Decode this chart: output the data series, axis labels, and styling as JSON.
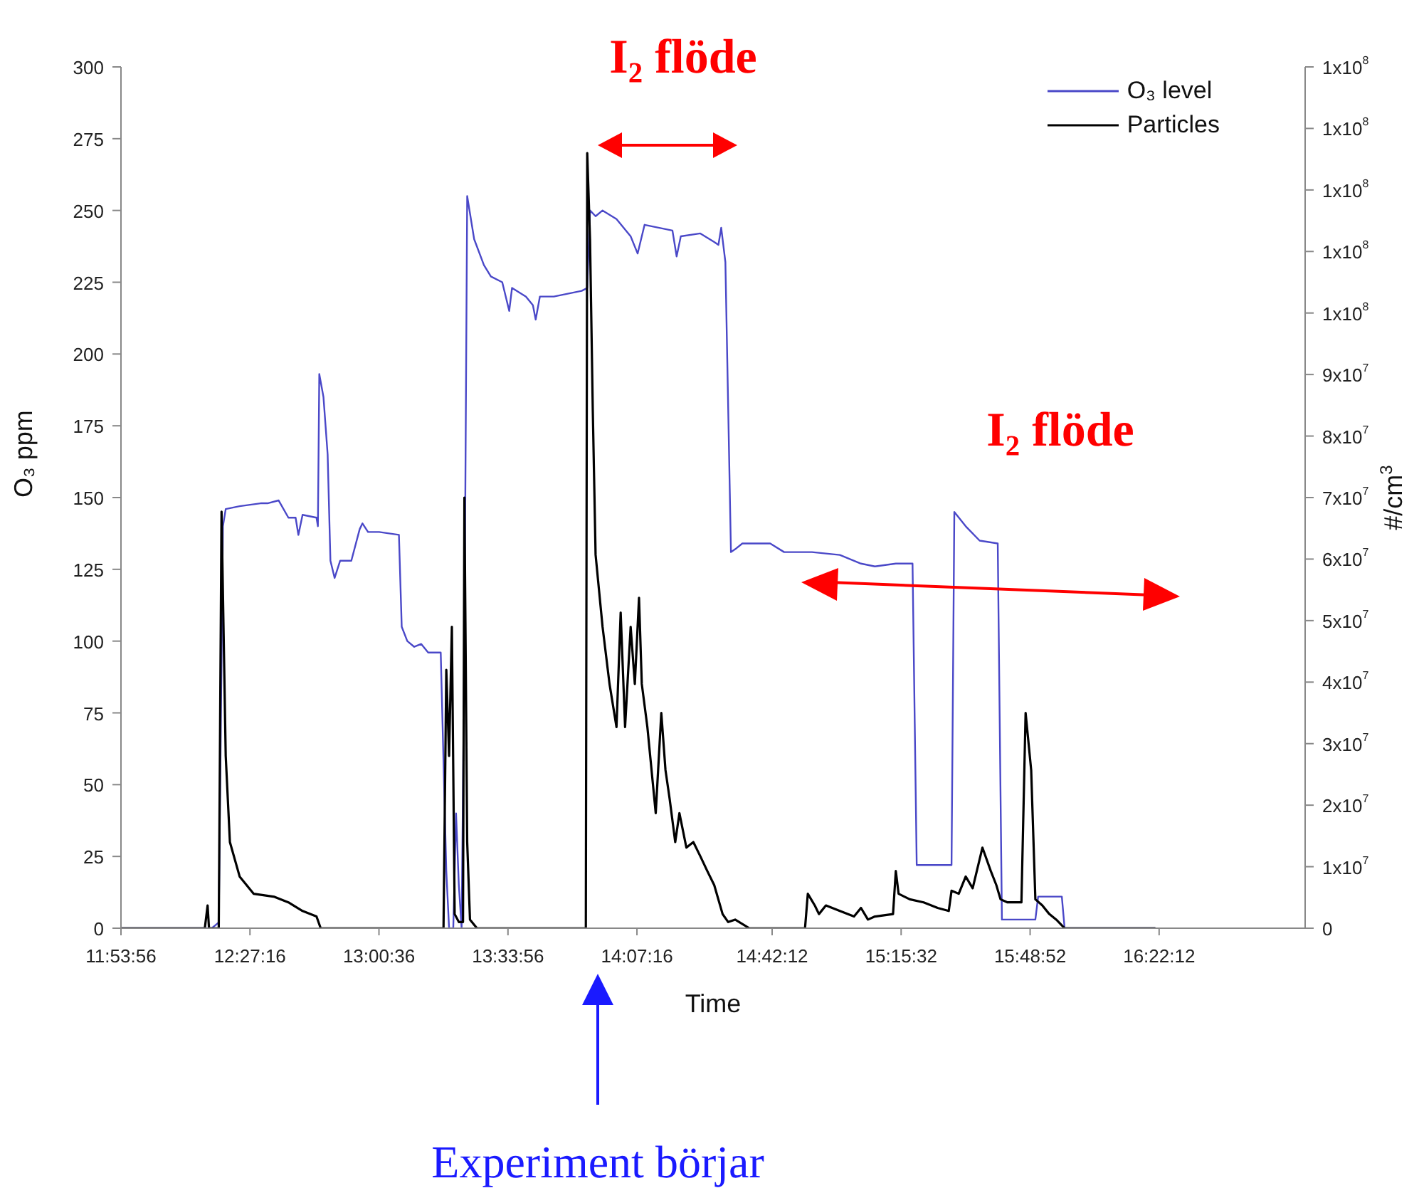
{
  "chart_data": {
    "type": "line",
    "xlabel": "Time",
    "ylabel": "O₃ ppm",
    "y2label": "#/cm$^{3}$",
    "legend": "top right",
    "xlim": [
      11.8989,
      16.9989
    ],
    "xticks": [
      {
        "value": 11.8989,
        "label": "11:53:56"
      },
      {
        "value": 12.4544,
        "label": "12:27:16"
      },
      {
        "value": 13.01,
        "label": "13:00:36"
      },
      {
        "value": 13.5656,
        "label": "13:33:56"
      },
      {
        "value": 14.1211,
        "label": "14:07:16"
      },
      {
        "value": 14.70333,
        "label": "14:42:12"
      },
      {
        "value": 15.25889,
        "label": "15:15:32"
      },
      {
        "value": 15.81444,
        "label": "15:48:52"
      },
      {
        "value": 16.37,
        "label": "16:22:12"
      }
    ],
    "ylim": [
      0,
      300
    ],
    "yticks": [
      0,
      25,
      50,
      75,
      100,
      125,
      150,
      175,
      200,
      225,
      250,
      275,
      300
    ],
    "y2lim": [
      0,
      140000000
    ],
    "y2ticks": [
      0,
      {
        "value": 10000000,
        "label": "1x10$^{7}$"
      },
      {
        "value": 20000000,
        "label": "2x10$^{7}$"
      },
      {
        "value": 30000000,
        "label": "3x10$^{7}$"
      },
      {
        "value": 40000000,
        "label": "4x10$^{7}$"
      },
      {
        "value": 50000000,
        "label": "5x10$^{7}$"
      },
      {
        "value": 60000000,
        "label": "6x10$^{7}$"
      },
      {
        "value": 70000000,
        "label": "7x10$^{7}$"
      },
      {
        "value": 80000000,
        "label": "8x10$^{7}$"
      },
      {
        "value": 90000000,
        "label": "9x10$^{7}$"
      },
      {
        "value": 100000000,
        "label": "1x10$^{8}$"
      },
      {
        "value": 110000000,
        "label": "1x10$^{8}$"
      },
      {
        "value": 120000000,
        "label": "1x10$^{8}$"
      },
      {
        "value": 130000000,
        "label": "1x10$^{8}$"
      },
      {
        "value": 140000000,
        "label": "1x10$^{8}$"
      }
    ],
    "annotations": [
      "I₂ flöde",
      "I₂ flöde",
      "Experiment börjar"
    ],
    "series": [
      {
        "name": "O₃ level",
        "color": "#4a48c8",
        "x": [
          11.899,
          12.29,
          12.32,
          12.338,
          12.35,
          12.41,
          12.5,
          12.53,
          12.578,
          12.62,
          12.651,
          12.663,
          12.681,
          12.741,
          12.747,
          12.753,
          12.771,
          12.789,
          12.801,
          12.819,
          12.843,
          12.891,
          12.927,
          12.939,
          12.963,
          13.011,
          13.096,
          13.108,
          13.132,
          13.162,
          13.192,
          13.222,
          13.276,
          13.3,
          13.312,
          13.33,
          13.342,
          13.354,
          13.366,
          13.378,
          13.39,
          13.42,
          13.462,
          13.492,
          13.541,
          13.571,
          13.583,
          13.643,
          13.673,
          13.685,
          13.703,
          13.763,
          13.823,
          13.883,
          13.907,
          13.919,
          13.943,
          13.973,
          14.033,
          14.094,
          14.124,
          14.154,
          14.214,
          14.274,
          14.292,
          14.31,
          14.394,
          14.454,
          14.472,
          14.484,
          14.502,
          14.526,
          14.544,
          14.575,
          14.695,
          14.755,
          14.875,
          14.995,
          15.086,
          15.146,
          15.236,
          15.308,
          15.326,
          15.476,
          15.488,
          15.537,
          15.597,
          15.675,
          15.693,
          15.837,
          15.849,
          15.951,
          15.963,
          16.354
        ],
        "values": [
          0,
          0,
          2,
          140,
          146,
          147,
          148,
          148,
          149,
          143,
          143,
          137,
          144,
          143,
          140,
          193,
          185,
          165,
          128,
          122,
          128,
          128,
          139,
          141,
          138,
          138,
          137,
          105,
          100,
          98,
          99,
          96,
          96,
          20,
          0,
          0,
          40,
          15,
          0,
          100,
          255,
          240,
          231,
          227,
          225,
          215,
          223,
          220,
          217,
          212,
          220,
          220,
          221,
          222,
          223,
          250,
          248,
          250,
          247,
          241,
          235,
          245,
          244,
          243,
          234,
          241,
          242,
          239,
          238,
          244,
          232,
          131,
          132,
          134,
          134,
          131,
          131,
          130,
          127,
          126,
          127,
          127,
          22,
          22,
          145,
          140,
          135,
          134,
          3,
          3,
          11,
          11,
          0,
          0
        ]
      },
      {
        "name": "Particles",
        "color": "#000000",
        "axis": "y2",
        "x": [
          11.899,
          12.26,
          12.272,
          12.278,
          12.32,
          12.332,
          12.35,
          12.368,
          12.41,
          12.47,
          12.56,
          12.62,
          12.681,
          12.741,
          12.759,
          12.831,
          13.192,
          13.288,
          13.3,
          13.312,
          13.324,
          13.336,
          13.354,
          13.372,
          13.378,
          13.39,
          13.402,
          13.432,
          13.673,
          13.901,
          13.907,
          13.919,
          13.931,
          13.943,
          13.973,
          14.003,
          14.033,
          14.051,
          14.07,
          14.094,
          14.112,
          14.13,
          14.142,
          14.166,
          14.184,
          14.202,
          14.226,
          14.244,
          14.262,
          14.286,
          14.304,
          14.334,
          14.364,
          14.394,
          14.424,
          14.454,
          14.49,
          14.514,
          14.544,
          14.605,
          14.845,
          14.857,
          14.887,
          14.905,
          14.935,
          14.995,
          15.056,
          15.086,
          15.116,
          15.146,
          15.224,
          15.236,
          15.248,
          15.296,
          15.356,
          15.416,
          15.464,
          15.476,
          15.507,
          15.537,
          15.567,
          15.609,
          15.645,
          15.669,
          15.687,
          15.717,
          15.777,
          15.795,
          15.819,
          15.837,
          15.867,
          15.897,
          15.927,
          15.963,
          16.354
        ],
        "values": [
          0,
          0,
          3700000,
          0,
          0,
          67700000,
          28000000,
          14000000,
          8400000,
          5600000,
          5100000,
          4200000,
          2800000,
          1900000,
          0,
          0,
          0,
          0,
          42000000,
          28000000,
          49000000,
          2300000,
          1000000,
          1000000,
          70000000,
          14000000,
          1400000,
          0,
          0,
          0,
          126000000,
          112000000,
          84000000,
          60700000,
          49000000,
          39700000,
          32700000,
          51300000,
          32700000,
          49000000,
          39700000,
          53700000,
          39700000,
          32700000,
          25700000,
          18700000,
          35000000,
          25700000,
          21000000,
          14000000,
          18700000,
          13100000,
          14000000,
          11700000,
          9300000,
          7000000,
          2300000,
          1000000,
          1400000,
          0,
          0,
          5600000,
          3700000,
          2300000,
          3700000,
          2800000,
          1900000,
          3300000,
          1400000,
          1900000,
          2300000,
          9300000,
          5600000,
          4700000,
          4200000,
          3300000,
          2800000,
          6100000,
          5600000,
          8400000,
          6500000,
          13100000,
          9300000,
          7000000,
          4700000,
          4200000,
          4200000,
          35000000,
          25700000,
          4700000,
          3700000,
          2300000,
          1400000,
          0,
          0
        ]
      }
    ]
  }
}
